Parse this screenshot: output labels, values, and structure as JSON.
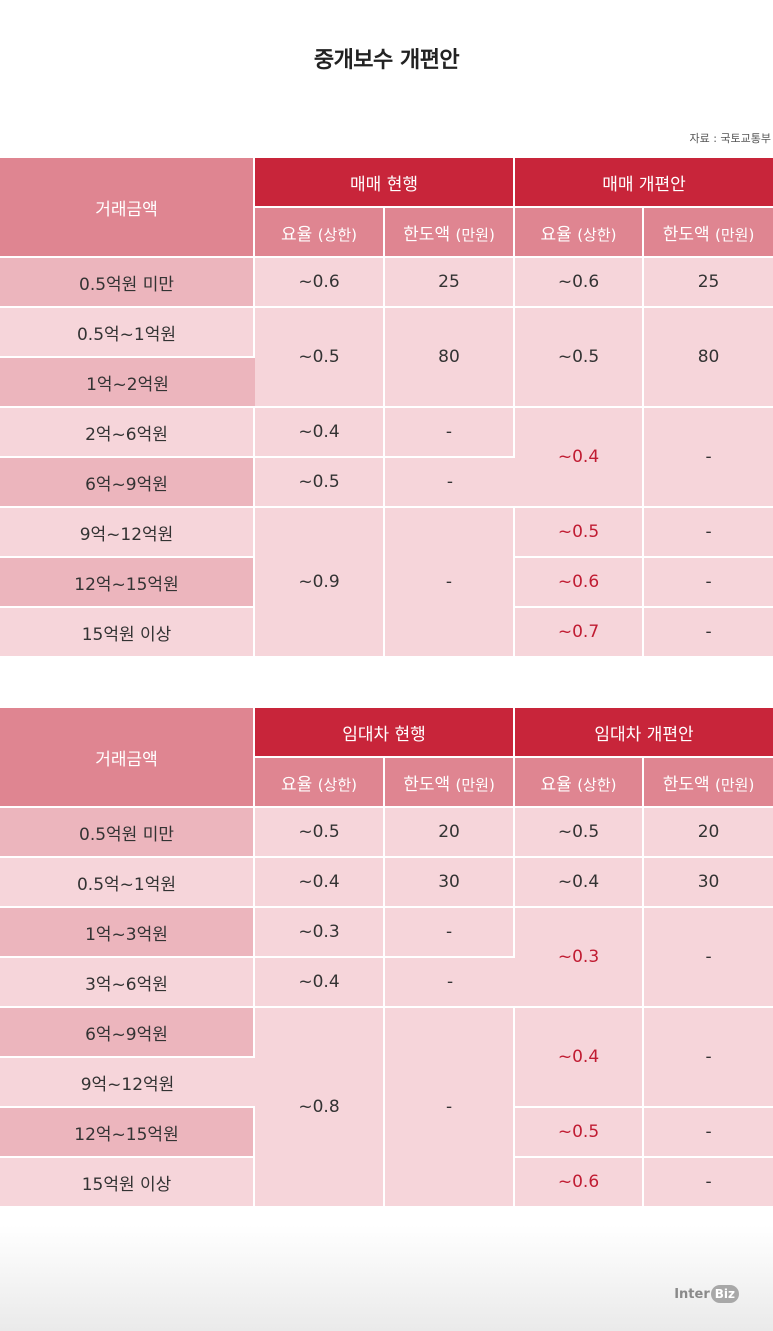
{
  "title": "중개보수 개편안",
  "source": "자료 : 국토교통부",
  "sale_table": {
    "row_header": "거래금액",
    "group_current": "매매 현행",
    "group_new": "매매 개편안",
    "rate_label": "요율",
    "rate_unit": "(상한)",
    "cap_label": "한도액",
    "cap_unit": "(만원)",
    "rows": [
      {
        "label": "0.5억원 미만",
        "cur_rate": "~0.6",
        "cur_cap": "25",
        "new_rate": "~0.6",
        "new_cap": "25"
      },
      {
        "label": "0.5억~1억원",
        "cur_rate": "~0.5",
        "cur_cap": "80",
        "new_rate": "~0.5",
        "new_cap": "80"
      },
      {
        "label": "1억~2억원"
      },
      {
        "label": "2억~6억원",
        "cur_rate": "~0.4",
        "cur_cap": "-",
        "new_rate": "~0.4",
        "new_cap": "-"
      },
      {
        "label": "6억~9억원",
        "cur_rate": "~0.5",
        "cur_cap": "-"
      },
      {
        "label": "9억~12억원",
        "cur_rate": "~0.9",
        "cur_cap": "-",
        "new_rate": "~0.5",
        "new_cap": "-"
      },
      {
        "label": "12억~15억원",
        "new_rate": "~0.6",
        "new_cap": "-"
      },
      {
        "label": "15억원 이상",
        "new_rate": "~0.7",
        "new_cap": "-"
      }
    ]
  },
  "lease_table": {
    "row_header": "거래금액",
    "group_current": "임대차 현행",
    "group_new": "임대차 개편안",
    "rate_label": "요율",
    "rate_unit": "(상한)",
    "cap_label": "한도액",
    "cap_unit": "(만원)",
    "rows": [
      {
        "label": "0.5억원 미만",
        "cur_rate": "~0.5",
        "cur_cap": "20",
        "new_rate": "~0.5",
        "new_cap": "20"
      },
      {
        "label": "0.5억~1억원",
        "cur_rate": "~0.4",
        "cur_cap": "30",
        "new_rate": "~0.4",
        "new_cap": "30"
      },
      {
        "label": "1억~3억원",
        "cur_rate": "~0.3",
        "cur_cap": "-",
        "new_rate": "~0.3",
        "new_cap": "-"
      },
      {
        "label": "3억~6억원",
        "cur_rate": "~0.4",
        "cur_cap": "-"
      },
      {
        "label": "6억~9억원",
        "cur_rate": "~0.8",
        "cur_cap": "-",
        "new_rate": "~0.4",
        "new_cap": "-"
      },
      {
        "label": "9억~12억원"
      },
      {
        "label": "12억~15억원",
        "new_rate": "~0.5",
        "new_cap": "-"
      },
      {
        "label": "15억원 이상",
        "new_rate": "~0.6",
        "new_cap": "-"
      }
    ]
  },
  "logo": {
    "inter": "Inter",
    "biz": "Biz"
  },
  "colors": {
    "accent": "#c8253a",
    "header_pink": "#df8591",
    "row_dark": "#ecb5bd",
    "row_light": "#f6d5da",
    "highlight_text": "#c01c32"
  }
}
